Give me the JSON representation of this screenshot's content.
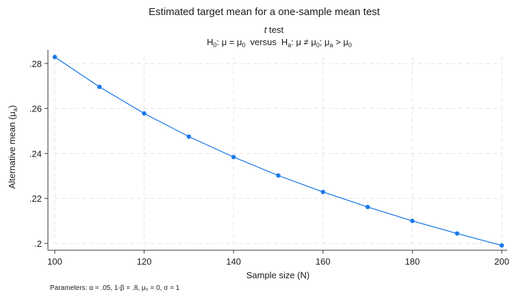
{
  "chart_data": {
    "type": "line",
    "title": "Estimated target mean for a one-sample mean test",
    "subtitle_italic": "t",
    "subtitle_rest": " test",
    "hypothesis": {
      "h": "H",
      "null_sub": "0",
      "null_rest": ": μ = μ",
      "mu0_sub": "0",
      "versus": "versus",
      "alt_sub": "a",
      "alt_rest": ": μ ≠ μ",
      "alt_mu0_sub": "0",
      "second_alt_lead": "; μ",
      "second_alt_sub": "a",
      "second_alt_rest": " > μ",
      "second_mu0_sub": "0"
    },
    "xlabel": "Sample size (N)",
    "ylabel_main": "Alternative mean (μ",
    "ylabel_sub": "a",
    "ylabel_close": ")",
    "xlim": [
      100,
      200
    ],
    "ylim": [
      0.2,
      0.283
    ],
    "x_ticks": [
      100,
      120,
      140,
      160,
      180,
      200
    ],
    "y_ticks": [
      {
        "value": 0.2,
        "label": ".2"
      },
      {
        "value": 0.22,
        "label": ".22"
      },
      {
        "value": 0.24,
        "label": ".24"
      },
      {
        "value": 0.26,
        "label": ".26"
      },
      {
        "value": 0.28,
        "label": ".28"
      }
    ],
    "grid": true,
    "line_color": "#1a7ae8",
    "series": [
      {
        "x": [
          100,
          110,
          120,
          130,
          140,
          150,
          160,
          170,
          180,
          190,
          200
        ],
        "values": [
          0.2829,
          0.2696,
          0.2578,
          0.2475,
          0.2384,
          0.2302,
          0.2229,
          0.2162,
          0.21,
          0.2044,
          0.1991
        ]
      }
    ],
    "note": "Parameters: α = .05, 1-β = .8, μ₀ = 0, σ = 1"
  }
}
